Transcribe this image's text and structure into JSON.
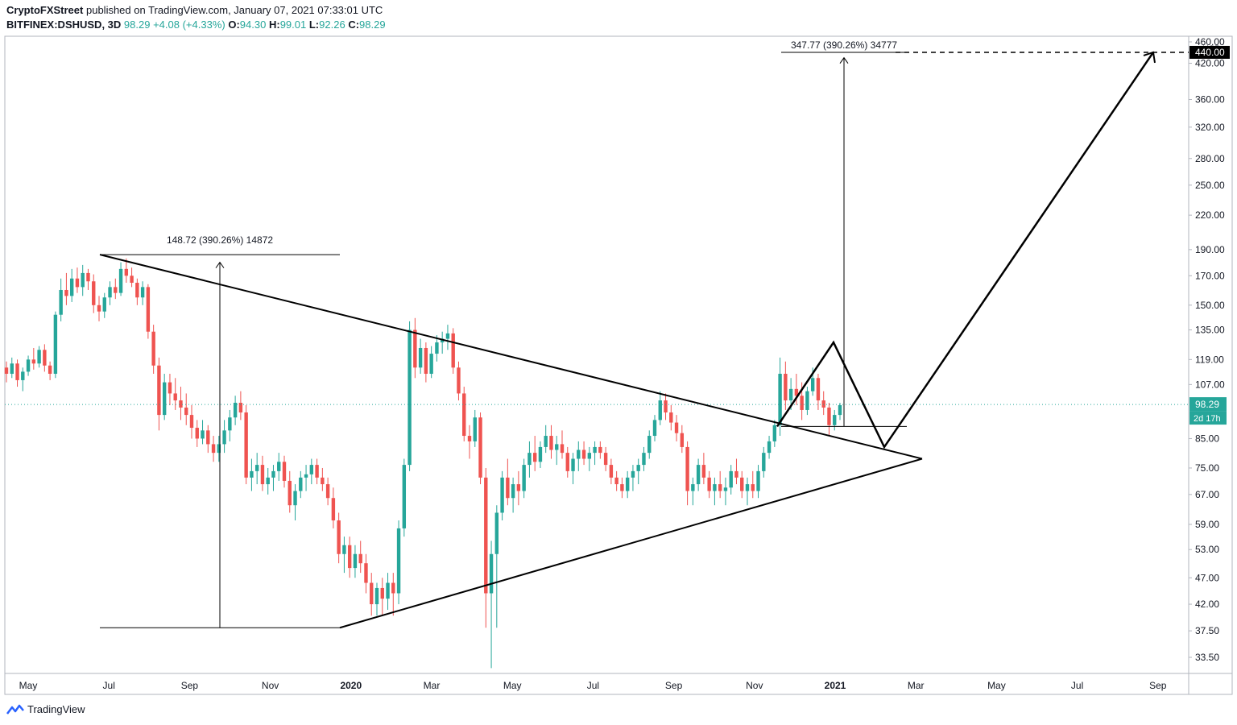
{
  "header": {
    "publisher": "CryptoFXStreet",
    "published_text": "published on TradingView.com, January 07, 2021 07:33:01 UTC",
    "symbol": "BITFINEX:DSHUSD, 3D",
    "last": "98.29",
    "change": "+4.08 (+4.33%)",
    "o_label": "O:",
    "o_value": "94.30",
    "h_label": "H:",
    "h_value": "99.01",
    "l_label": "L:",
    "l_value": "92.26",
    "c_label": "C:",
    "c_value": "98.29"
  },
  "footer": {
    "brand": "TradingView",
    "logo_icon": "tradingview-logo-icon"
  },
  "colors": {
    "up": "#26a69a",
    "down": "#ef5350",
    "line": "#000000",
    "axis_bg": "#ffffff"
  },
  "chart_data": {
    "type": "candlestick",
    "currency": "USD",
    "y_scale": "log",
    "ylim": [
      31,
      460
    ],
    "y_ticks": [
      "460.00",
      "440.00",
      "420.00",
      "360.00",
      "320.00",
      "280.00",
      "250.00",
      "220.00",
      "190.00",
      "170.00",
      "150.00",
      "135.00",
      "119.00",
      "107.00",
      "85.00",
      "75.00",
      "67.00",
      "59.00",
      "53.00",
      "47.00",
      "42.00",
      "37.50",
      "33.50"
    ],
    "x_labels": [
      "May",
      "Jul",
      "Sep",
      "Nov",
      "2020",
      "Mar",
      "May",
      "Jul",
      "Sep",
      "Nov",
      "2021",
      "Mar",
      "May",
      "Jul",
      "Sep"
    ],
    "bold_x_labels": [
      "2020",
      "2021"
    ],
    "current_price_label": "98.29",
    "countdown_label": "2d 17h",
    "target_price_label": "440.00",
    "measure_labels": [
      "148.72 (390.26%) 14872",
      "347.77 (390.26%) 34777"
    ],
    "candles": [
      [
        115,
        118,
        108,
        112
      ],
      [
        112,
        120,
        110,
        117
      ],
      [
        117,
        119,
        106,
        109
      ],
      [
        109,
        115,
        104,
        113
      ],
      [
        113,
        121,
        111,
        119
      ],
      [
        119,
        125,
        114,
        117
      ],
      [
        117,
        126,
        115,
        124
      ],
      [
        124,
        127,
        113,
        116
      ],
      [
        116,
        118,
        109,
        112
      ],
      [
        112,
        146,
        110,
        144
      ],
      [
        144,
        168,
        140,
        160
      ],
      [
        160,
        172,
        150,
        156
      ],
      [
        156,
        175,
        152,
        168
      ],
      [
        168,
        176,
        158,
        162
      ],
      [
        162,
        178,
        156,
        172
      ],
      [
        172,
        175,
        160,
        166
      ],
      [
        166,
        171,
        145,
        150
      ],
      [
        150,
        156,
        140,
        146
      ],
      [
        146,
        158,
        142,
        155
      ],
      [
        155,
        166,
        150,
        162
      ],
      [
        162,
        168,
        154,
        158
      ],
      [
        158,
        180,
        156,
        175
      ],
      [
        175,
        183,
        165,
        170
      ],
      [
        170,
        176,
        162,
        165
      ],
      [
        165,
        168,
        150,
        155
      ],
      [
        155,
        166,
        150,
        162
      ],
      [
        162,
        164,
        130,
        134
      ],
      [
        134,
        138,
        112,
        116
      ],
      [
        116,
        120,
        88,
        94
      ],
      [
        94,
        112,
        92,
        108
      ],
      [
        108,
        112,
        98,
        103
      ],
      [
        103,
        110,
        96,
        100
      ],
      [
        100,
        106,
        92,
        97
      ],
      [
        97,
        103,
        90,
        94
      ],
      [
        94,
        98,
        85,
        89
      ],
      [
        89,
        92,
        82,
        85
      ],
      [
        85,
        92,
        83,
        88
      ],
      [
        88,
        90,
        80,
        83
      ],
      [
        83,
        86,
        77,
        80
      ],
      [
        80,
        86,
        77,
        83
      ],
      [
        83,
        92,
        80,
        88
      ],
      [
        88,
        96,
        84,
        93
      ],
      [
        93,
        102,
        90,
        99
      ],
      [
        99,
        104,
        92,
        95
      ],
      [
        95,
        98,
        70,
        72
      ],
      [
        72,
        78,
        68,
        74
      ],
      [
        74,
        80,
        70,
        76
      ],
      [
        76,
        79,
        68,
        70
      ],
      [
        70,
        75,
        67,
        72
      ],
      [
        72,
        76,
        68,
        74
      ],
      [
        74,
        80,
        71,
        77
      ],
      [
        77,
        79,
        69,
        71
      ],
      [
        71,
        74,
        62,
        64
      ],
      [
        64,
        70,
        60,
        68
      ],
      [
        68,
        74,
        66,
        72
      ],
      [
        72,
        76,
        68,
        73
      ],
      [
        73,
        78,
        70,
        76
      ],
      [
        76,
        78,
        70,
        72
      ],
      [
        72,
        75,
        68,
        70
      ],
      [
        70,
        72,
        64,
        66
      ],
      [
        66,
        69,
        58,
        60
      ],
      [
        60,
        62,
        50,
        52
      ],
      [
        52,
        56,
        48,
        54
      ],
      [
        54,
        56,
        47,
        49
      ],
      [
        49,
        54,
        47,
        52
      ],
      [
        52,
        55,
        48,
        50
      ],
      [
        50,
        52,
        44,
        46
      ],
      [
        46,
        48,
        40,
        42
      ],
      [
        42,
        46,
        40,
        45
      ],
      [
        45,
        47,
        40,
        43
      ],
      [
        43,
        48,
        41,
        46
      ],
      [
        46,
        48,
        40,
        44
      ],
      [
        44,
        60,
        42,
        58
      ],
      [
        58,
        78,
        56,
        76
      ],
      [
        76,
        140,
        74,
        135
      ],
      [
        135,
        142,
        110,
        115
      ],
      [
        115,
        130,
        112,
        125
      ],
      [
        125,
        128,
        108,
        112
      ],
      [
        112,
        126,
        110,
        122
      ],
      [
        122,
        132,
        118,
        128
      ],
      [
        128,
        134,
        122,
        130
      ],
      [
        130,
        138,
        124,
        133
      ],
      [
        133,
        136,
        112,
        115
      ],
      [
        115,
        118,
        100,
        103
      ],
      [
        103,
        106,
        84,
        86
      ],
      [
        86,
        90,
        78,
        84
      ],
      [
        84,
        96,
        82,
        93
      ],
      [
        93,
        95,
        70,
        72
      ],
      [
        72,
        75,
        38,
        44
      ],
      [
        44,
        55,
        32,
        52
      ],
      [
        52,
        64,
        38,
        62
      ],
      [
        62,
        74,
        60,
        72
      ],
      [
        72,
        78,
        64,
        66
      ],
      [
        66,
        72,
        62,
        70
      ],
      [
        70,
        74,
        64,
        68
      ],
      [
        68,
        78,
        66,
        76
      ],
      [
        76,
        84,
        72,
        80
      ],
      [
        80,
        86,
        74,
        77
      ],
      [
        77,
        84,
        75,
        82
      ],
      [
        82,
        90,
        80,
        86
      ],
      [
        86,
        90,
        78,
        81
      ],
      [
        81,
        86,
        76,
        83
      ],
      [
        83,
        88,
        78,
        80
      ],
      [
        80,
        82,
        72,
        74
      ],
      [
        74,
        80,
        70,
        78
      ],
      [
        78,
        84,
        74,
        81
      ],
      [
        81,
        84,
        76,
        78
      ],
      [
        78,
        82,
        74,
        80
      ],
      [
        80,
        84,
        76,
        82
      ],
      [
        82,
        84,
        78,
        80
      ],
      [
        80,
        82,
        74,
        76
      ],
      [
        76,
        78,
        70,
        72
      ],
      [
        72,
        74,
        68,
        70
      ],
      [
        70,
        72,
        66,
        68
      ],
      [
        68,
        74,
        66,
        72
      ],
      [
        72,
        76,
        68,
        74
      ],
      [
        74,
        78,
        70,
        76
      ],
      [
        76,
        82,
        74,
        80
      ],
      [
        80,
        88,
        78,
        86
      ],
      [
        86,
        94,
        84,
        92
      ],
      [
        92,
        104,
        90,
        100
      ],
      [
        100,
        103,
        92,
        95
      ],
      [
        95,
        98,
        88,
        91
      ],
      [
        91,
        94,
        84,
        87
      ],
      [
        87,
        90,
        80,
        82
      ],
      [
        82,
        84,
        64,
        68
      ],
      [
        68,
        72,
        64,
        70
      ],
      [
        70,
        78,
        68,
        76
      ],
      [
        76,
        80,
        70,
        72
      ],
      [
        72,
        74,
        66,
        68
      ],
      [
        68,
        72,
        64,
        70
      ],
      [
        70,
        74,
        66,
        68
      ],
      [
        68,
        72,
        64,
        69
      ],
      [
        69,
        76,
        67,
        74
      ],
      [
        74,
        78,
        70,
        72
      ],
      [
        72,
        74,
        66,
        68
      ],
      [
        68,
        72,
        64,
        70
      ],
      [
        70,
        74,
        66,
        68
      ],
      [
        68,
        76,
        66,
        74
      ],
      [
        74,
        82,
        72,
        80
      ],
      [
        80,
        86,
        78,
        84
      ],
      [
        84,
        92,
        82,
        90
      ],
      [
        90,
        120,
        86,
        112
      ],
      [
        112,
        118,
        96,
        100
      ],
      [
        100,
        110,
        96,
        105
      ],
      [
        105,
        112,
        98,
        102
      ],
      [
        102,
        108,
        92,
        96
      ],
      [
        96,
        106,
        94,
        104
      ],
      [
        104,
        115,
        102,
        110
      ],
      [
        110,
        112,
        96,
        100
      ],
      [
        100,
        104,
        94,
        97
      ],
      [
        97,
        99,
        86,
        90
      ],
      [
        90,
        96,
        88,
        94
      ],
      [
        94,
        99,
        92,
        98
      ]
    ],
    "drawings": {
      "descending_trendline": "from the June 2019 high (~186) to the February 2021 apex (~78)",
      "ascending_trendline": "from the December 2019 low (~38) to the February 2021 apex (~78)",
      "projection_path": "peak ~128 in late December 2020, retest ~82 in February 2021, target 440 by September 2021"
    }
  }
}
